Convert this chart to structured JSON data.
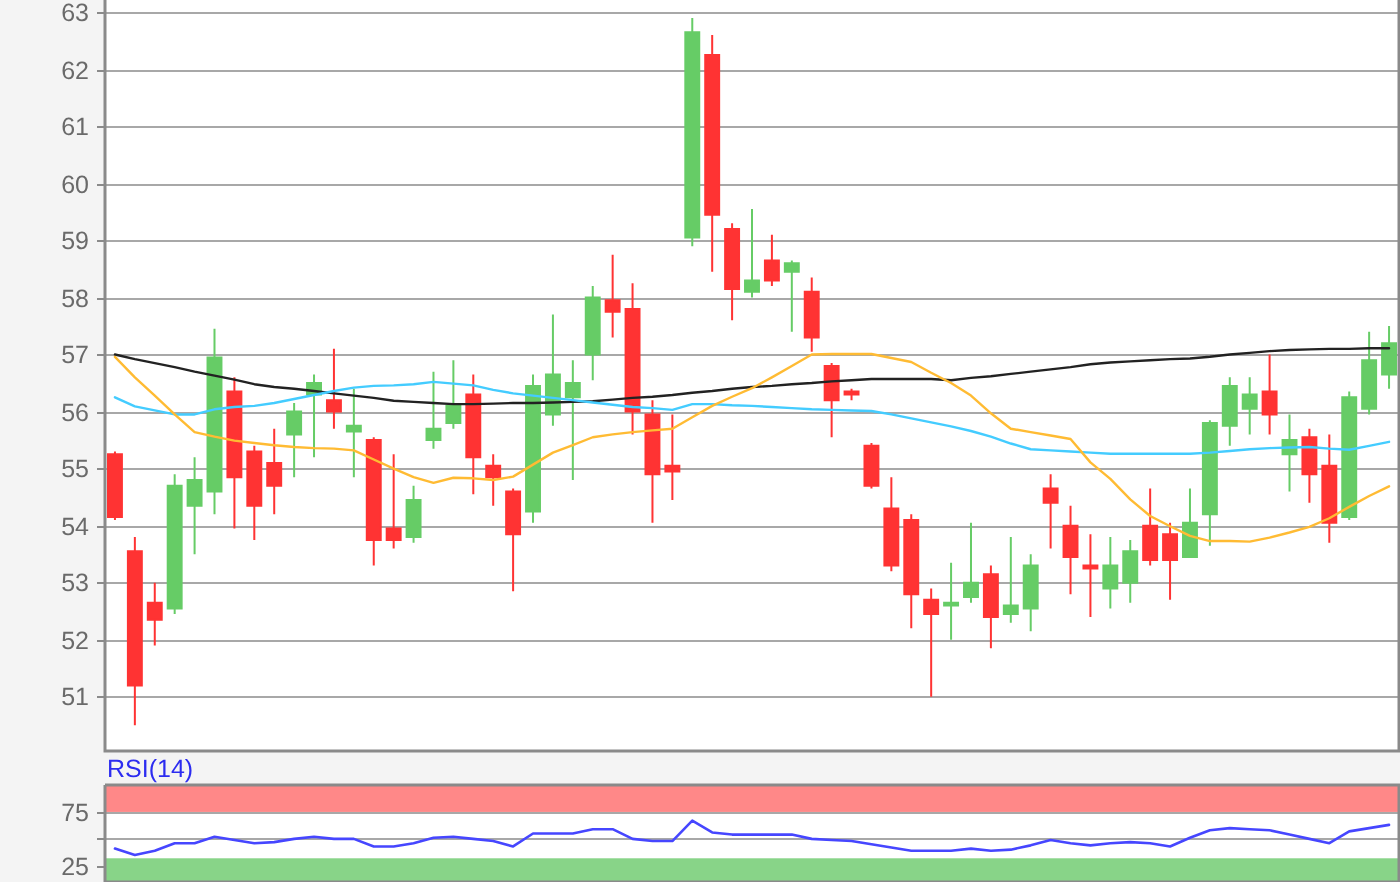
{
  "chart_data": [
    {
      "type": "candlestick",
      "categories": [
        null,
        null,
        null,
        null,
        null,
        null,
        null,
        null,
        null,
        null,
        null,
        null,
        null,
        null,
        null,
        null,
        null,
        null,
        null,
        null,
        null,
        null,
        null,
        null,
        null,
        null,
        null,
        null,
        null,
        null,
        null,
        null,
        null,
        null,
        null,
        null,
        null,
        null,
        null,
        null,
        null,
        null,
        null,
        null,
        null,
        null,
        null,
        null,
        null,
        null,
        null,
        null,
        null,
        null,
        null,
        null,
        null,
        null,
        null,
        null,
        null,
        null,
        null,
        null,
        null
      ],
      "ohlc": [
        [
          55.25,
          55.3,
          54.1,
          54.15
        ],
        [
          53.55,
          53.8,
          50.5,
          51.2
        ],
        [
          52.65,
          53.0,
          51.9,
          52.35
        ],
        [
          52.55,
          54.9,
          52.45,
          54.7
        ],
        [
          54.35,
          55.2,
          53.5,
          54.8
        ],
        [
          54.6,
          57.45,
          54.2,
          56.95
        ],
        [
          56.35,
          56.6,
          53.95,
          54.85
        ],
        [
          55.3,
          55.4,
          53.75,
          54.35
        ],
        [
          55.1,
          55.7,
          54.2,
          54.7
        ],
        [
          55.6,
          56.15,
          54.85,
          56.0
        ],
        [
          56.3,
          56.65,
          55.2,
          56.5
        ],
        [
          56.2,
          57.1,
          55.7,
          56.0
        ],
        [
          55.65,
          56.4,
          54.85,
          55.75
        ],
        [
          55.5,
          55.55,
          53.3,
          53.75
        ],
        [
          53.95,
          55.25,
          53.6,
          53.75
        ],
        [
          53.8,
          54.7,
          53.7,
          54.45
        ],
        [
          55.5,
          56.7,
          55.35,
          55.7
        ],
        [
          55.8,
          56.9,
          55.7,
          56.1
        ],
        [
          56.3,
          56.65,
          54.55,
          55.2
        ],
        [
          55.05,
          55.25,
          54.35,
          54.85
        ],
        [
          54.6,
          54.65,
          52.85,
          53.85
        ],
        [
          54.25,
          56.65,
          54.05,
          56.45
        ],
        [
          55.95,
          57.7,
          55.75,
          56.65
        ],
        [
          56.25,
          56.9,
          54.8,
          56.5
        ],
        [
          57.0,
          58.2,
          56.55,
          58.0
        ],
        [
          57.95,
          58.75,
          57.3,
          57.75
        ],
        [
          57.8,
          58.25,
          55.6,
          56.0
        ],
        [
          55.95,
          56.2,
          54.05,
          54.9
        ],
        [
          55.05,
          55.95,
          54.45,
          54.95
        ],
        [
          59.05,
          62.9,
          58.9,
          62.65
        ],
        [
          62.25,
          62.6,
          58.45,
          59.45
        ],
        [
          59.2,
          59.3,
          57.6,
          58.15
        ],
        [
          58.1,
          59.55,
          58.0,
          58.3
        ],
        [
          58.65,
          59.1,
          58.2,
          58.3
        ],
        [
          58.45,
          58.65,
          57.4,
          58.6
        ],
        [
          58.1,
          58.35,
          57.05,
          57.3
        ],
        [
          56.8,
          56.85,
          55.55,
          56.2
        ],
        [
          56.35,
          56.4,
          56.2,
          56.3
        ],
        [
          55.4,
          55.45,
          54.65,
          54.7
        ],
        [
          54.3,
          54.85,
          53.2,
          53.3
        ],
        [
          54.1,
          54.2,
          52.2,
          52.8
        ],
        [
          52.7,
          52.9,
          51.0,
          52.45
        ],
        [
          52.6,
          53.35,
          52.0,
          52.65
        ],
        [
          52.75,
          54.05,
          52.65,
          53.0
        ],
        [
          53.15,
          53.3,
          51.85,
          52.4
        ],
        [
          52.45,
          53.8,
          52.3,
          52.6
        ],
        [
          52.55,
          53.5,
          52.15,
          53.3
        ],
        [
          54.65,
          54.9,
          53.6,
          54.4
        ],
        [
          54.0,
          54.35,
          52.8,
          53.45
        ],
        [
          53.3,
          53.85,
          52.4,
          53.25
        ],
        [
          52.9,
          53.8,
          52.55,
          53.3
        ],
        [
          53.0,
          53.75,
          52.65,
          53.55
        ],
        [
          54.0,
          54.65,
          53.3,
          53.4
        ],
        [
          53.85,
          54.05,
          52.7,
          53.4
        ],
        [
          53.45,
          54.65,
          53.45,
          54.05
        ],
        [
          54.2,
          55.85,
          53.65,
          55.8
        ],
        [
          55.75,
          56.6,
          55.4,
          56.45
        ],
        [
          56.05,
          56.6,
          55.6,
          56.3
        ],
        [
          56.35,
          57.0,
          55.6,
          55.95
        ],
        [
          55.25,
          55.95,
          54.6,
          55.5
        ],
        [
          55.55,
          55.7,
          54.4,
          54.9
        ],
        [
          55.05,
          55.6,
          53.7,
          54.05
        ],
        [
          54.15,
          56.35,
          54.1,
          56.25
        ],
        [
          56.05,
          57.4,
          55.95,
          56.9
        ],
        [
          56.65,
          57.5,
          56.4,
          57.2
        ]
      ],
      "colors": [
        "#ff3333",
        "#ff3333",
        "#ff3333",
        "#66cc66",
        "#66cc66",
        "#66cc66",
        "#ff3333",
        "#ff3333",
        "#ff3333",
        "#66cc66",
        "#66cc66",
        "#ff3333",
        "#66cc66",
        "#ff3333",
        "#ff3333",
        "#66cc66",
        "#66cc66",
        "#66cc66",
        "#ff3333",
        "#ff3333",
        "#ff3333",
        "#66cc66",
        "#66cc66",
        "#66cc66",
        "#66cc66",
        "#ff3333",
        "#ff3333",
        "#ff3333",
        "#ff3333",
        "#66cc66",
        "#ff3333",
        "#ff3333",
        "#66cc66",
        "#ff3333",
        "#66cc66",
        "#ff3333",
        "#ff3333",
        "#ff3333",
        "#ff3333",
        "#ff3333",
        "#ff3333",
        "#ff3333",
        "#66cc66",
        "#66cc66",
        "#ff3333",
        "#66cc66",
        "#66cc66",
        "#ff3333",
        "#ff3333",
        "#ff3333",
        "#66cc66",
        "#66cc66",
        "#ff3333",
        "#ff3333",
        "#66cc66",
        "#66cc66",
        "#66cc66",
        "#66cc66",
        "#ff3333",
        "#66cc66",
        "#ff3333",
        "#ff3333",
        "#66cc66",
        "#66cc66",
        "#66cc66"
      ],
      "series": [
        {
          "type": "line",
          "color": "#222222",
          "values": [
            57.0,
            56.92,
            56.85,
            56.78,
            56.7,
            56.63,
            56.56,
            56.48,
            56.43,
            56.4,
            56.36,
            56.32,
            56.28,
            56.24,
            56.19,
            56.17,
            56.15,
            56.13,
            56.13,
            56.14,
            56.15,
            56.15,
            56.16,
            56.17,
            56.18,
            56.21,
            56.24,
            56.26,
            56.29,
            56.33,
            56.36,
            56.4,
            56.43,
            56.45,
            56.48,
            56.5,
            56.53,
            56.55,
            56.57,
            56.57,
            56.57,
            56.57,
            56.55,
            56.59,
            56.62,
            56.66,
            56.7,
            56.74,
            56.78,
            56.83,
            56.86,
            56.88,
            56.9,
            56.92,
            56.93,
            56.96,
            57.0,
            57.03,
            57.06,
            57.08,
            57.09,
            57.1,
            57.1,
            57.11,
            57.11
          ]
        },
        {
          "type": "line",
          "color": "#44ccff",
          "values": [
            56.25,
            56.09,
            56.02,
            55.95,
            55.95,
            56.04,
            56.08,
            56.1,
            56.15,
            56.22,
            56.29,
            56.36,
            56.42,
            56.45,
            56.46,
            56.48,
            56.52,
            56.49,
            56.46,
            56.38,
            56.32,
            56.28,
            56.24,
            56.2,
            56.16,
            56.12,
            56.08,
            56.06,
            56.03,
            56.13,
            56.13,
            56.11,
            56.1,
            56.08,
            56.06,
            56.04,
            56.03,
            56.02,
            56.01,
            55.95,
            55.88,
            55.81,
            55.74,
            55.66,
            55.56,
            55.44,
            55.34,
            55.32,
            55.3,
            55.28,
            55.26,
            55.26,
            55.26,
            55.26,
            55.26,
            55.28,
            55.31,
            55.34,
            55.36,
            55.37,
            55.38,
            55.35,
            55.33,
            55.4,
            55.47
          ]
        },
        {
          "type": "line",
          "color": "#ffbb33",
          "values": [
            56.96,
            56.6,
            56.28,
            55.95,
            55.64,
            55.56,
            55.49,
            55.45,
            55.41,
            55.38,
            55.36,
            55.35,
            55.32,
            55.16,
            55.0,
            54.85,
            54.75,
            54.84,
            54.83,
            54.8,
            54.86,
            55.07,
            55.28,
            55.41,
            55.55,
            55.6,
            55.64,
            55.67,
            55.7,
            55.9,
            56.1,
            56.26,
            56.41,
            56.6,
            56.8,
            57.0,
            57.01,
            57.01,
            57.01,
            56.94,
            56.87,
            56.68,
            56.5,
            56.28,
            55.97,
            55.7,
            55.64,
            55.58,
            55.52,
            55.11,
            54.82,
            54.46,
            54.17,
            53.99,
            53.82,
            53.73,
            53.73,
            53.72,
            53.79,
            53.88,
            53.98,
            54.13,
            54.33,
            54.52,
            54.69
          ]
        }
      ],
      "ylim": [
        50.05,
        63.25
      ],
      "yticks": [
        51,
        52,
        53,
        54,
        55,
        56,
        57,
        58,
        59,
        60,
        61,
        62,
        63
      ],
      "grid": "y",
      "tick_labels": "y"
    },
    {
      "type": "line",
      "title": "RSI(14)",
      "categories": [
        null,
        null,
        null,
        null,
        null,
        null,
        null,
        null,
        null,
        null,
        null,
        null,
        null,
        null,
        null,
        null,
        null,
        null,
        null,
        null,
        null,
        null,
        null,
        null,
        null,
        null,
        null,
        null,
        null,
        null,
        null,
        null,
        null,
        null,
        null,
        null,
        null,
        null,
        null,
        null,
        null,
        null,
        null,
        null,
        null,
        null,
        null,
        null,
        null,
        null,
        null,
        null,
        null,
        null,
        null,
        null,
        null,
        null,
        null,
        null,
        null,
        null,
        null,
        null,
        null
      ],
      "series": [
        {
          "color": "#4646ff",
          "values": [
            41,
            35,
            39,
            46,
            46,
            52,
            49,
            46,
            47,
            50,
            52,
            50,
            50,
            43,
            43,
            46,
            51,
            52,
            50,
            48,
            43,
            55,
            55,
            55,
            59,
            59,
            50,
            48,
            48,
            67,
            56,
            54,
            54,
            54,
            54,
            50,
            49,
            48,
            45,
            42,
            39,
            39,
            39,
            41,
            39,
            40,
            44,
            49,
            46,
            44,
            46,
            47,
            46,
            43,
            51,
            58,
            60,
            59,
            58,
            54,
            50,
            46,
            57,
            60,
            63
          ]
        }
      ],
      "ylim": [
        10,
        100
      ],
      "yticks": [
        25,
        {
          "value": 50,
          "label": null
        },
        75
      ],
      "grid": "y",
      "bands": [
        {
          "axis": "y",
          "from": 75,
          "to": 100,
          "color": "#ff8888"
        },
        {
          "axis": "y",
          "from": 10,
          "to": 32,
          "color": "#88d488"
        }
      ],
      "tick_labels": "y"
    }
  ]
}
